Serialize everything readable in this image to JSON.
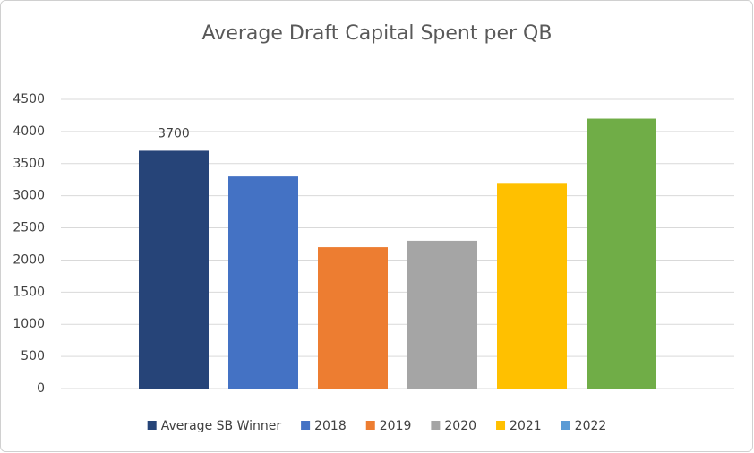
{
  "chart_data": {
    "type": "bar",
    "title": "Average Draft Capital Spent per QB",
    "series": [
      {
        "name": "Average SB Winner",
        "color": "#264478",
        "values": [
          3700
        ],
        "show_value_labels": true
      },
      {
        "name": "2018",
        "color": "#4472c4",
        "values": [
          3300
        ]
      },
      {
        "name": "2019",
        "color": "#ed7d31",
        "values": [
          2200
        ]
      },
      {
        "name": "2020",
        "color": "#a5a5a5",
        "values": [
          2300
        ]
      },
      {
        "name": "2021",
        "color": "#ffc000",
        "values": [
          3200
        ]
      },
      {
        "name": "2022",
        "color": "#70ad47",
        "legend_color": "#5b9bd5",
        "values": [
          4200
        ]
      }
    ],
    "ylim": [
      0,
      4500
    ],
    "yticks": [
      0,
      500,
      1000,
      1500,
      2000,
      2500,
      3000,
      3500,
      4000,
      4500
    ],
    "grid": true,
    "legend": "bottom"
  }
}
